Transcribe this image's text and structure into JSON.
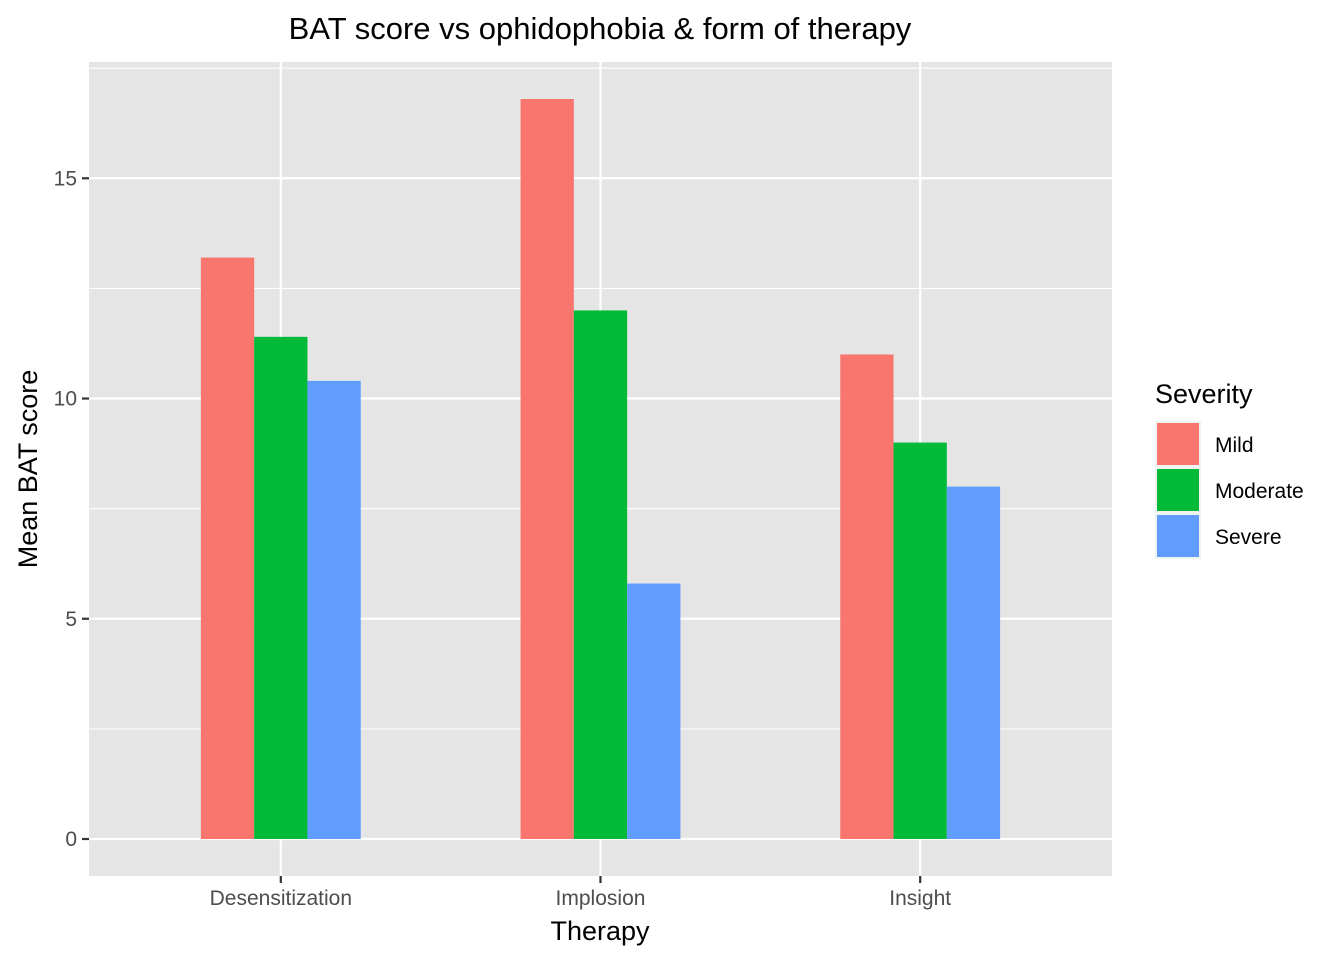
{
  "chart_data": {
    "type": "bar",
    "title": "BAT score vs ophidophobia & form of therapy",
    "xlabel": "Therapy",
    "ylabel": "Mean BAT score",
    "categories": [
      "Desensitization",
      "Implosion",
      "Insight"
    ],
    "series": [
      {
        "name": "Mild",
        "values": [
          13.2,
          16.8,
          11.0
        ],
        "color": "#F8766D"
      },
      {
        "name": "Moderate",
        "values": [
          11.4,
          12.0,
          9.0
        ],
        "color": "#00BA38"
      },
      {
        "name": "Severe",
        "values": [
          10.4,
          5.8,
          8.0
        ],
        "color": "#619CFF"
      }
    ],
    "ylim": [
      -0.84,
      17.64
    ],
    "yticks": [
      0,
      5,
      10,
      15
    ],
    "ytick_labels": [
      "0",
      "5",
      "10",
      "15"
    ],
    "grid": true,
    "legend": {
      "title": "Severity",
      "position": "right"
    },
    "colors": {
      "panel": "#E5E5E5",
      "grid": "#FFFFFF",
      "tick": "#333333",
      "text": "#000000",
      "ticklabel": "#4D4D4D"
    }
  }
}
